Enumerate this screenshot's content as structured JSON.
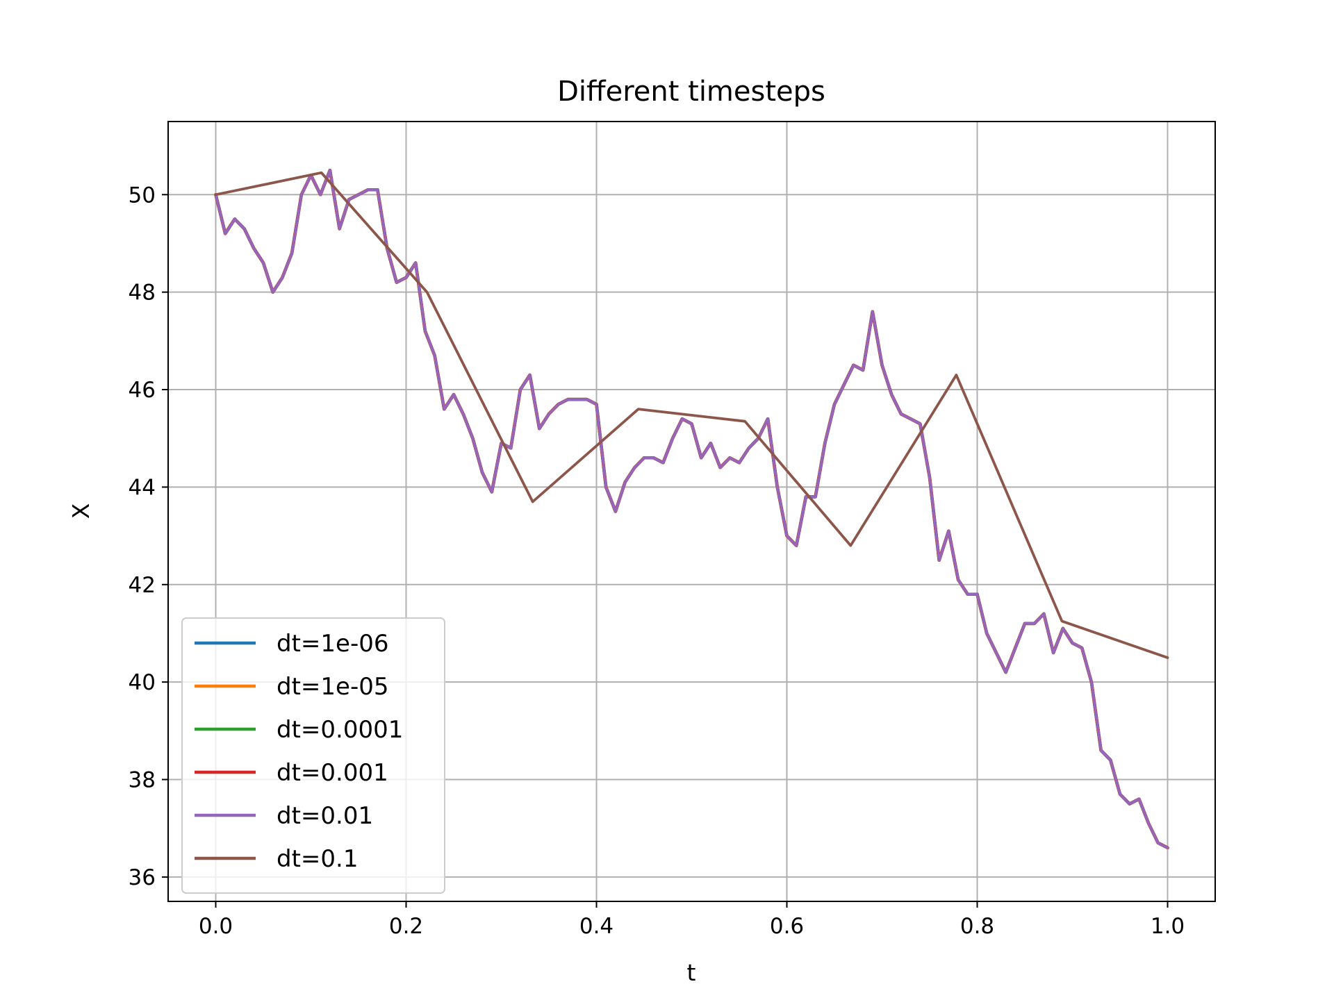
{
  "chart_data": {
    "type": "line",
    "title": "Different timesteps",
    "xlabel": "t",
    "ylabel": "X",
    "xlim": [
      -0.05,
      1.05
    ],
    "ylim": [
      35.5,
      51.5
    ],
    "xticks": [
      0.0,
      0.2,
      0.4,
      0.6,
      0.8,
      1.0
    ],
    "xtick_labels": [
      "0.0",
      "0.2",
      "0.4",
      "0.6",
      "0.8",
      "1.0"
    ],
    "yticks": [
      36,
      38,
      40,
      42,
      44,
      46,
      48,
      50
    ],
    "ytick_labels": [
      "36",
      "38",
      "40",
      "42",
      "44",
      "46",
      "48",
      "50"
    ],
    "grid": true,
    "legend_position": "lower-left",
    "series": [
      {
        "name": "dt=1e-06",
        "color": "#1f77b4",
        "x": [
          0.0,
          0.01,
          0.02,
          0.03,
          0.04,
          0.05,
          0.06,
          0.07,
          0.08,
          0.09,
          0.1,
          0.11,
          0.12,
          0.13,
          0.14,
          0.15,
          0.16,
          0.17,
          0.18,
          0.19,
          0.2,
          0.21,
          0.22,
          0.23,
          0.24,
          0.25,
          0.26,
          0.27,
          0.28,
          0.29,
          0.3,
          0.31,
          0.32,
          0.33,
          0.34,
          0.35,
          0.36,
          0.37,
          0.38,
          0.39,
          0.4,
          0.41,
          0.42,
          0.43,
          0.44,
          0.45,
          0.46,
          0.47,
          0.48,
          0.49,
          0.5,
          0.51,
          0.52,
          0.53,
          0.54,
          0.55,
          0.56,
          0.57,
          0.58,
          0.59,
          0.6,
          0.61,
          0.62,
          0.63,
          0.64,
          0.65,
          0.66,
          0.67,
          0.68,
          0.69,
          0.7,
          0.71,
          0.72,
          0.73,
          0.74,
          0.75,
          0.76,
          0.77,
          0.78,
          0.79,
          0.8,
          0.81,
          0.82,
          0.83,
          0.84,
          0.85,
          0.86,
          0.87,
          0.88,
          0.89,
          0.9,
          0.91,
          0.92,
          0.93,
          0.94,
          0.95,
          0.96,
          0.97,
          0.98,
          0.99,
          1.0
        ],
        "y": [
          50.0,
          49.2,
          49.5,
          49.3,
          48.9,
          48.6,
          48.0,
          48.3,
          48.8,
          50.0,
          50.4,
          50.0,
          50.5,
          49.3,
          49.9,
          50.0,
          50.1,
          50.1,
          48.9,
          48.2,
          48.3,
          48.6,
          47.2,
          46.7,
          45.6,
          45.9,
          45.5,
          45.0,
          44.3,
          43.9,
          44.9,
          44.8,
          46.0,
          46.3,
          45.2,
          45.5,
          45.7,
          45.8,
          45.8,
          45.8,
          45.7,
          44.0,
          43.5,
          44.1,
          44.4,
          44.6,
          44.6,
          44.5,
          45.0,
          45.4,
          45.3,
          44.6,
          44.9,
          44.4,
          44.6,
          44.5,
          44.8,
          45.0,
          45.4,
          44.0,
          43.0,
          42.8,
          43.8,
          43.8,
          44.9,
          45.7,
          46.1,
          46.5,
          46.4,
          47.6,
          46.5,
          45.9,
          45.5,
          45.4,
          45.3,
          44.2,
          42.5,
          43.1,
          42.1,
          41.8,
          41.8,
          41.0,
          40.6,
          40.2,
          40.7,
          41.2,
          41.2,
          41.4,
          40.6,
          41.1,
          40.8,
          40.7,
          40.0,
          38.6,
          38.4,
          37.7,
          37.5,
          37.6,
          37.1,
          36.7,
          36.6
        ]
      },
      {
        "name": "dt=1e-05",
        "color": "#ff7f0e",
        "x": [
          0.0,
          0.01,
          0.02,
          0.03,
          0.04,
          0.05,
          0.06,
          0.07,
          0.08,
          0.09,
          0.1,
          0.11,
          0.12,
          0.13,
          0.14,
          0.15,
          0.16,
          0.17,
          0.18,
          0.19,
          0.2,
          0.21,
          0.22,
          0.23,
          0.24,
          0.25,
          0.26,
          0.27,
          0.28,
          0.29,
          0.3,
          0.31,
          0.32,
          0.33,
          0.34,
          0.35,
          0.36,
          0.37,
          0.38,
          0.39,
          0.4,
          0.41,
          0.42,
          0.43,
          0.44,
          0.45,
          0.46,
          0.47,
          0.48,
          0.49,
          0.5,
          0.51,
          0.52,
          0.53,
          0.54,
          0.55,
          0.56,
          0.57,
          0.58,
          0.59,
          0.6,
          0.61,
          0.62,
          0.63,
          0.64,
          0.65,
          0.66,
          0.67,
          0.68,
          0.69,
          0.7,
          0.71,
          0.72,
          0.73,
          0.74,
          0.75,
          0.76,
          0.77,
          0.78,
          0.79,
          0.8,
          0.81,
          0.82,
          0.83,
          0.84,
          0.85,
          0.86,
          0.87,
          0.88,
          0.89,
          0.9,
          0.91,
          0.92,
          0.93,
          0.94,
          0.95,
          0.96,
          0.97,
          0.98,
          0.99,
          1.0
        ],
        "y": [
          50.0,
          49.2,
          49.5,
          49.3,
          48.9,
          48.6,
          48.0,
          48.3,
          48.8,
          50.0,
          50.4,
          50.0,
          50.5,
          49.3,
          49.9,
          50.0,
          50.1,
          50.1,
          48.9,
          48.2,
          48.3,
          48.6,
          47.2,
          46.7,
          45.6,
          45.9,
          45.5,
          45.0,
          44.3,
          43.9,
          44.9,
          44.8,
          46.0,
          46.3,
          45.2,
          45.5,
          45.7,
          45.8,
          45.8,
          45.8,
          45.7,
          44.0,
          43.5,
          44.1,
          44.4,
          44.6,
          44.6,
          44.5,
          45.0,
          45.4,
          45.3,
          44.6,
          44.9,
          44.4,
          44.6,
          44.5,
          44.8,
          45.0,
          45.4,
          44.0,
          43.0,
          42.8,
          43.8,
          43.8,
          44.9,
          45.7,
          46.1,
          46.5,
          46.4,
          47.6,
          46.5,
          45.9,
          45.5,
          45.4,
          45.3,
          44.2,
          42.5,
          43.1,
          42.1,
          41.8,
          41.8,
          41.0,
          40.6,
          40.2,
          40.7,
          41.2,
          41.2,
          41.4,
          40.6,
          41.1,
          40.8,
          40.7,
          40.0,
          38.6,
          38.4,
          37.7,
          37.5,
          37.6,
          37.1,
          36.7,
          36.6
        ]
      },
      {
        "name": "dt=0.0001",
        "color": "#2ca02c",
        "x": [
          0.0,
          0.01,
          0.02,
          0.03,
          0.04,
          0.05,
          0.06,
          0.07,
          0.08,
          0.09,
          0.1,
          0.11,
          0.12,
          0.13,
          0.14,
          0.15,
          0.16,
          0.17,
          0.18,
          0.19,
          0.2,
          0.21,
          0.22,
          0.23,
          0.24,
          0.25,
          0.26,
          0.27,
          0.28,
          0.29,
          0.3,
          0.31,
          0.32,
          0.33,
          0.34,
          0.35,
          0.36,
          0.37,
          0.38,
          0.39,
          0.4,
          0.41,
          0.42,
          0.43,
          0.44,
          0.45,
          0.46,
          0.47,
          0.48,
          0.49,
          0.5,
          0.51,
          0.52,
          0.53,
          0.54,
          0.55,
          0.56,
          0.57,
          0.58,
          0.59,
          0.6,
          0.61,
          0.62,
          0.63,
          0.64,
          0.65,
          0.66,
          0.67,
          0.68,
          0.69,
          0.7,
          0.71,
          0.72,
          0.73,
          0.74,
          0.75,
          0.76,
          0.77,
          0.78,
          0.79,
          0.8,
          0.81,
          0.82,
          0.83,
          0.84,
          0.85,
          0.86,
          0.87,
          0.88,
          0.89,
          0.9,
          0.91,
          0.92,
          0.93,
          0.94,
          0.95,
          0.96,
          0.97,
          0.98,
          0.99,
          1.0
        ],
        "y": [
          50.0,
          49.2,
          49.5,
          49.3,
          48.9,
          48.6,
          48.0,
          48.3,
          48.8,
          50.0,
          50.4,
          50.0,
          50.5,
          49.3,
          49.9,
          50.0,
          50.1,
          50.1,
          48.9,
          48.2,
          48.3,
          48.6,
          47.2,
          46.7,
          45.6,
          45.9,
          45.5,
          45.0,
          44.3,
          43.9,
          44.9,
          44.8,
          46.0,
          46.3,
          45.2,
          45.5,
          45.7,
          45.8,
          45.8,
          45.8,
          45.7,
          44.0,
          43.5,
          44.1,
          44.4,
          44.6,
          44.6,
          44.5,
          45.0,
          45.4,
          45.3,
          44.6,
          44.9,
          44.4,
          44.6,
          44.5,
          44.8,
          45.0,
          45.4,
          44.0,
          43.0,
          42.8,
          43.8,
          43.8,
          44.9,
          45.7,
          46.1,
          46.5,
          46.4,
          47.6,
          46.5,
          45.9,
          45.5,
          45.4,
          45.3,
          44.2,
          42.5,
          43.1,
          42.1,
          41.8,
          41.8,
          41.0,
          40.6,
          40.2,
          40.7,
          41.2,
          41.2,
          41.4,
          40.6,
          41.1,
          40.8,
          40.7,
          40.0,
          38.6,
          38.4,
          37.7,
          37.5,
          37.6,
          37.1,
          36.7,
          36.6
        ]
      },
      {
        "name": "dt=0.001",
        "color": "#d62728",
        "x": [
          0.0,
          0.01,
          0.02,
          0.03,
          0.04,
          0.05,
          0.06,
          0.07,
          0.08,
          0.09,
          0.1,
          0.11,
          0.12,
          0.13,
          0.14,
          0.15,
          0.16,
          0.17,
          0.18,
          0.19,
          0.2,
          0.21,
          0.22,
          0.23,
          0.24,
          0.25,
          0.26,
          0.27,
          0.28,
          0.29,
          0.3,
          0.31,
          0.32,
          0.33,
          0.34,
          0.35,
          0.36,
          0.37,
          0.38,
          0.39,
          0.4,
          0.41,
          0.42,
          0.43,
          0.44,
          0.45,
          0.46,
          0.47,
          0.48,
          0.49,
          0.5,
          0.51,
          0.52,
          0.53,
          0.54,
          0.55,
          0.56,
          0.57,
          0.58,
          0.59,
          0.6,
          0.61,
          0.62,
          0.63,
          0.64,
          0.65,
          0.66,
          0.67,
          0.68,
          0.69,
          0.7,
          0.71,
          0.72,
          0.73,
          0.74,
          0.75,
          0.76,
          0.77,
          0.78,
          0.79,
          0.8,
          0.81,
          0.82,
          0.83,
          0.84,
          0.85,
          0.86,
          0.87,
          0.88,
          0.89,
          0.9,
          0.91,
          0.92,
          0.93,
          0.94,
          0.95,
          0.96,
          0.97,
          0.98,
          0.99,
          1.0
        ],
        "y": [
          50.0,
          49.2,
          49.5,
          49.3,
          48.9,
          48.6,
          48.0,
          48.3,
          48.8,
          50.0,
          50.4,
          50.0,
          50.5,
          49.3,
          49.9,
          50.0,
          50.1,
          50.1,
          48.9,
          48.2,
          48.3,
          48.6,
          47.2,
          46.7,
          45.6,
          45.9,
          45.5,
          45.0,
          44.3,
          43.9,
          44.9,
          44.8,
          46.0,
          46.3,
          45.2,
          45.5,
          45.7,
          45.8,
          45.8,
          45.8,
          45.7,
          44.0,
          43.5,
          44.1,
          44.4,
          44.6,
          44.6,
          44.5,
          45.0,
          45.4,
          45.3,
          44.6,
          44.9,
          44.4,
          44.6,
          44.5,
          44.8,
          45.0,
          45.4,
          44.0,
          43.0,
          42.8,
          43.8,
          43.8,
          44.9,
          45.7,
          46.1,
          46.5,
          46.4,
          47.6,
          46.5,
          45.9,
          45.5,
          45.4,
          45.3,
          44.2,
          42.5,
          43.1,
          42.1,
          41.8,
          41.8,
          41.0,
          40.6,
          40.2,
          40.7,
          41.2,
          41.2,
          41.4,
          40.6,
          41.1,
          40.8,
          40.7,
          40.0,
          38.6,
          38.4,
          37.7,
          37.5,
          37.6,
          37.1,
          36.7,
          36.6
        ]
      },
      {
        "name": "dt=0.01",
        "color": "#9467bd",
        "x": [
          0.0,
          0.01,
          0.02,
          0.03,
          0.04,
          0.05,
          0.06,
          0.07,
          0.08,
          0.09,
          0.1,
          0.11,
          0.12,
          0.13,
          0.14,
          0.15,
          0.16,
          0.17,
          0.18,
          0.19,
          0.2,
          0.21,
          0.22,
          0.23,
          0.24,
          0.25,
          0.26,
          0.27,
          0.28,
          0.29,
          0.3,
          0.31,
          0.32,
          0.33,
          0.34,
          0.35,
          0.36,
          0.37,
          0.38,
          0.39,
          0.4,
          0.41,
          0.42,
          0.43,
          0.44,
          0.45,
          0.46,
          0.47,
          0.48,
          0.49,
          0.5,
          0.51,
          0.52,
          0.53,
          0.54,
          0.55,
          0.56,
          0.57,
          0.58,
          0.59,
          0.6,
          0.61,
          0.62,
          0.63,
          0.64,
          0.65,
          0.66,
          0.67,
          0.68,
          0.69,
          0.7,
          0.71,
          0.72,
          0.73,
          0.74,
          0.75,
          0.76,
          0.77,
          0.78,
          0.79,
          0.8,
          0.81,
          0.82,
          0.83,
          0.84,
          0.85,
          0.86,
          0.87,
          0.88,
          0.89,
          0.9,
          0.91,
          0.92,
          0.93,
          0.94,
          0.95,
          0.96,
          0.97,
          0.98,
          0.99,
          1.0
        ],
        "y": [
          50.0,
          49.2,
          49.5,
          49.3,
          48.9,
          48.6,
          48.0,
          48.3,
          48.8,
          50.0,
          50.4,
          50.0,
          50.5,
          49.3,
          49.9,
          50.0,
          50.1,
          50.1,
          48.9,
          48.2,
          48.3,
          48.6,
          47.2,
          46.7,
          45.6,
          45.9,
          45.5,
          45.0,
          44.3,
          43.9,
          44.9,
          44.8,
          46.0,
          46.3,
          45.2,
          45.5,
          45.7,
          45.8,
          45.8,
          45.8,
          45.7,
          44.0,
          43.5,
          44.1,
          44.4,
          44.6,
          44.6,
          44.5,
          45.0,
          45.4,
          45.3,
          44.6,
          44.9,
          44.4,
          44.6,
          44.5,
          44.8,
          45.0,
          45.4,
          44.0,
          43.0,
          42.8,
          43.8,
          43.8,
          44.9,
          45.7,
          46.1,
          46.5,
          46.4,
          47.6,
          46.5,
          45.9,
          45.5,
          45.4,
          45.3,
          44.2,
          42.5,
          43.1,
          42.1,
          41.8,
          41.8,
          41.0,
          40.6,
          40.2,
          40.7,
          41.2,
          41.2,
          41.4,
          40.6,
          41.1,
          40.8,
          40.7,
          40.0,
          38.6,
          38.4,
          37.7,
          37.5,
          37.6,
          37.1,
          36.7,
          36.6
        ]
      },
      {
        "name": "dt=0.1",
        "color": "#8c564b",
        "x": [
          0.0,
          0.111,
          0.222,
          0.333,
          0.444,
          0.556,
          0.667,
          0.778,
          0.889,
          1.0
        ],
        "y": [
          50.0,
          50.45,
          48.0,
          43.7,
          45.6,
          45.35,
          42.8,
          46.3,
          41.25,
          40.5
        ]
      }
    ]
  }
}
